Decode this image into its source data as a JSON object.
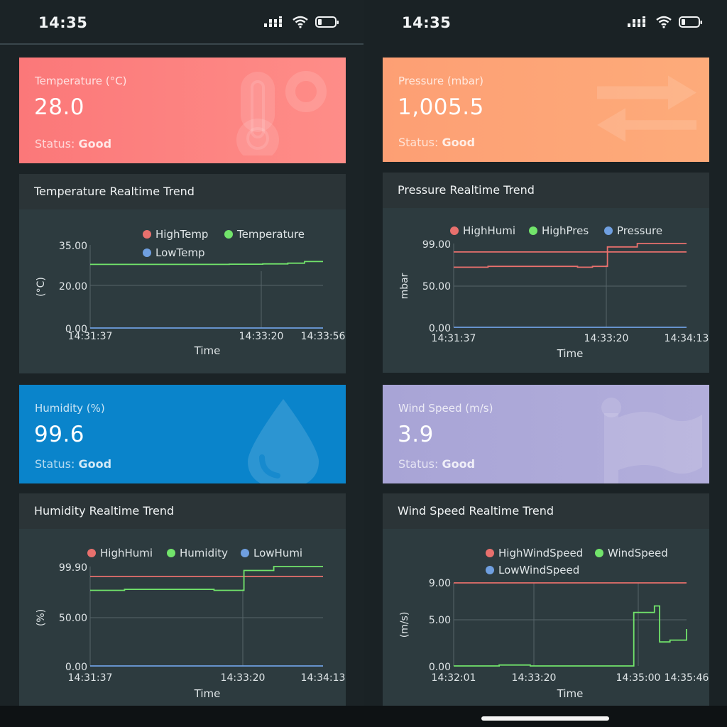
{
  "status_bar": {
    "time": "14:35"
  },
  "screens": [
    {
      "cards": [
        {
          "label": "Temperature (°C)",
          "value": "28.0",
          "status_prefix": "Status: ",
          "status_value": "Good",
          "color": "#fb7c7b",
          "icon": "thermometer-icon"
        },
        {
          "label": "Humidity (%)",
          "value": "99.6",
          "status_prefix": "Status: ",
          "status_value": "Good",
          "color": "#0a85cb",
          "icon": "droplet-icon"
        }
      ],
      "charts": [
        {
          "title": "Temperature Realtime Trend",
          "legend": [
            "HighTemp",
            "Temperature",
            "LowTemp"
          ],
          "ylabel": "(°C)",
          "xlabel": "Time",
          "y_ticks": [
            "35.00",
            "20.00",
            "0.00"
          ],
          "x_ticks": [
            "14:31:37",
            "14:33:20",
            "14:33:56"
          ]
        },
        {
          "title": "Humidity Realtime Trend",
          "legend": [
            "HighHumi",
            "Humidity",
            "LowHumi"
          ],
          "ylabel": "(%)",
          "xlabel": "Time",
          "y_ticks": [
            "99.90",
            "50.00",
            "0.00"
          ],
          "x_ticks": [
            "14:31:37",
            "14:33:20",
            "14:34:13"
          ]
        }
      ]
    },
    {
      "cards": [
        {
          "label": "Pressure (mbar)",
          "value": "1,005.5",
          "status_prefix": "Status: ",
          "status_value": "Good",
          "color": "#fda272",
          "icon": "arrows-icon"
        },
        {
          "label": "Wind Speed (m/s)",
          "value": "3.9",
          "status_prefix": "Status: ",
          "status_value": "Good",
          "color": "#a8a5d6",
          "icon": "flag-icon"
        }
      ],
      "charts": [
        {
          "title": "Pressure Realtime Trend",
          "legend": [
            "HighHumi",
            "HighPres",
            "Pressure"
          ],
          "ylabel": "mbar",
          "xlabel": "Time",
          "y_ticks": [
            "99.00",
            "50.00",
            "0.00"
          ],
          "x_ticks": [
            "14:31:37",
            "14:33:20",
            "14:34:13"
          ]
        },
        {
          "title": "Wind Speed Realtime Trend",
          "legend": [
            "HighWindSpeed",
            "WindSpeed",
            "LowWindSpeed"
          ],
          "ylabel": "(m/s)",
          "xlabel": "Time",
          "y_ticks": [
            "9.00",
            "5.00",
            "0.00"
          ],
          "x_ticks": [
            "14:32:01",
            "14:33:20",
            "14:35:00",
            "14:35:46"
          ]
        }
      ]
    }
  ],
  "series_colors": {
    "high": "#e8706d",
    "value": "#72e46b",
    "low": "#6f9fe0"
  },
  "chart_data": [
    {
      "type": "line",
      "title": "Temperature Realtime Trend",
      "xlabel": "Time",
      "ylabel": "(°C)",
      "ylim": [
        0,
        35
      ],
      "x": [
        "14:31:37",
        "14:32:00",
        "14:32:30",
        "14:33:00",
        "14:33:20",
        "14:33:35",
        "14:33:45",
        "14:33:56"
      ],
      "series": [
        {
          "name": "Temperature",
          "values": [
            26.8,
            26.8,
            26.8,
            26.9,
            27.0,
            27.3,
            28.0,
            28.0
          ]
        },
        {
          "name": "LowTemp",
          "values": [
            0,
            0,
            0,
            0,
            0,
            0,
            0,
            0
          ]
        }
      ]
    },
    {
      "type": "line",
      "title": "Pressure Realtime Trend",
      "xlabel": "Time",
      "ylabel": "mbar",
      "ylim": [
        0,
        99
      ],
      "x": [
        "14:31:37",
        "14:32:00",
        "14:32:30",
        "14:33:00",
        "14:33:10",
        "14:33:20",
        "14:33:40",
        "14:34:13"
      ],
      "series": [
        {
          "name": "HighHumi",
          "values": [
            89,
            89,
            89,
            89,
            89,
            89,
            89,
            89
          ]
        },
        {
          "name": "HighPres",
          "values": [
            71,
            72,
            72,
            71,
            72,
            95,
            99,
            99
          ]
        },
        {
          "name": "Pressure",
          "values": [
            0,
            0,
            0,
            0,
            0,
            0,
            0,
            0
          ]
        }
      ]
    },
    {
      "type": "line",
      "title": "Humidity Realtime Trend",
      "xlabel": "Time",
      "ylabel": "(%)",
      "ylim": [
        0,
        99.9
      ],
      "x": [
        "14:31:37",
        "14:32:00",
        "14:32:30",
        "14:33:00",
        "14:33:10",
        "14:33:20",
        "14:33:40",
        "14:34:13"
      ],
      "series": [
        {
          "name": "HighHumi",
          "values": [
            90,
            90,
            90,
            90,
            90,
            90,
            90,
            90
          ]
        },
        {
          "name": "Humidity",
          "values": [
            76,
            77,
            77,
            76,
            76,
            96,
            99.9,
            99.9
          ]
        },
        {
          "name": "LowHumi",
          "values": [
            0,
            0,
            0,
            0,
            0,
            0,
            0,
            0
          ]
        }
      ]
    },
    {
      "type": "line",
      "title": "Wind Speed Realtime Trend",
      "xlabel": "Time",
      "ylabel": "(m/s)",
      "ylim": [
        0,
        9
      ],
      "x": [
        "14:32:01",
        "14:32:40",
        "14:32:45",
        "14:33:15",
        "14:33:20",
        "14:34:50",
        "14:34:55",
        "14:35:05",
        "14:35:15",
        "14:35:20",
        "14:35:30",
        "14:35:46"
      ],
      "series": [
        {
          "name": "HighWindSpeed",
          "values": [
            9,
            9,
            9,
            9,
            9,
            9,
            9,
            9,
            9,
            9,
            9,
            9
          ]
        },
        {
          "name": "WindSpeed",
          "values": [
            0,
            0,
            0.1,
            0,
            0,
            0,
            5.8,
            5.8,
            6.5,
            2.6,
            2.8,
            4.0
          ]
        }
      ]
    }
  ]
}
